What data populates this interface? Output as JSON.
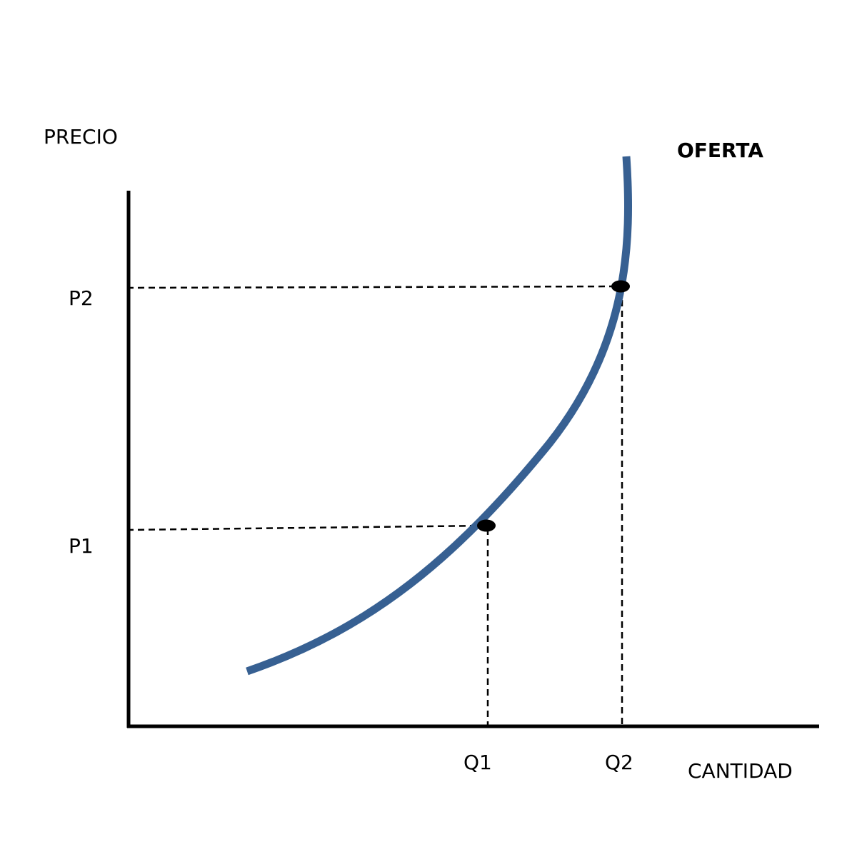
{
  "diagram": {
    "y_axis_label": "PRECIO",
    "x_axis_label": "CANTIDAD",
    "curve_label": "OFERTA",
    "price_levels": [
      "P2",
      "P1"
    ],
    "quantity_levels": [
      "Q1",
      "Q2"
    ],
    "points": [
      {
        "price": "P1",
        "quantity": "Q1"
      },
      {
        "price": "P2",
        "quantity": "Q2"
      }
    ],
    "colors": {
      "curve": "#376092",
      "axes": "#000000",
      "guides": "#000000",
      "points": "#000000"
    }
  }
}
